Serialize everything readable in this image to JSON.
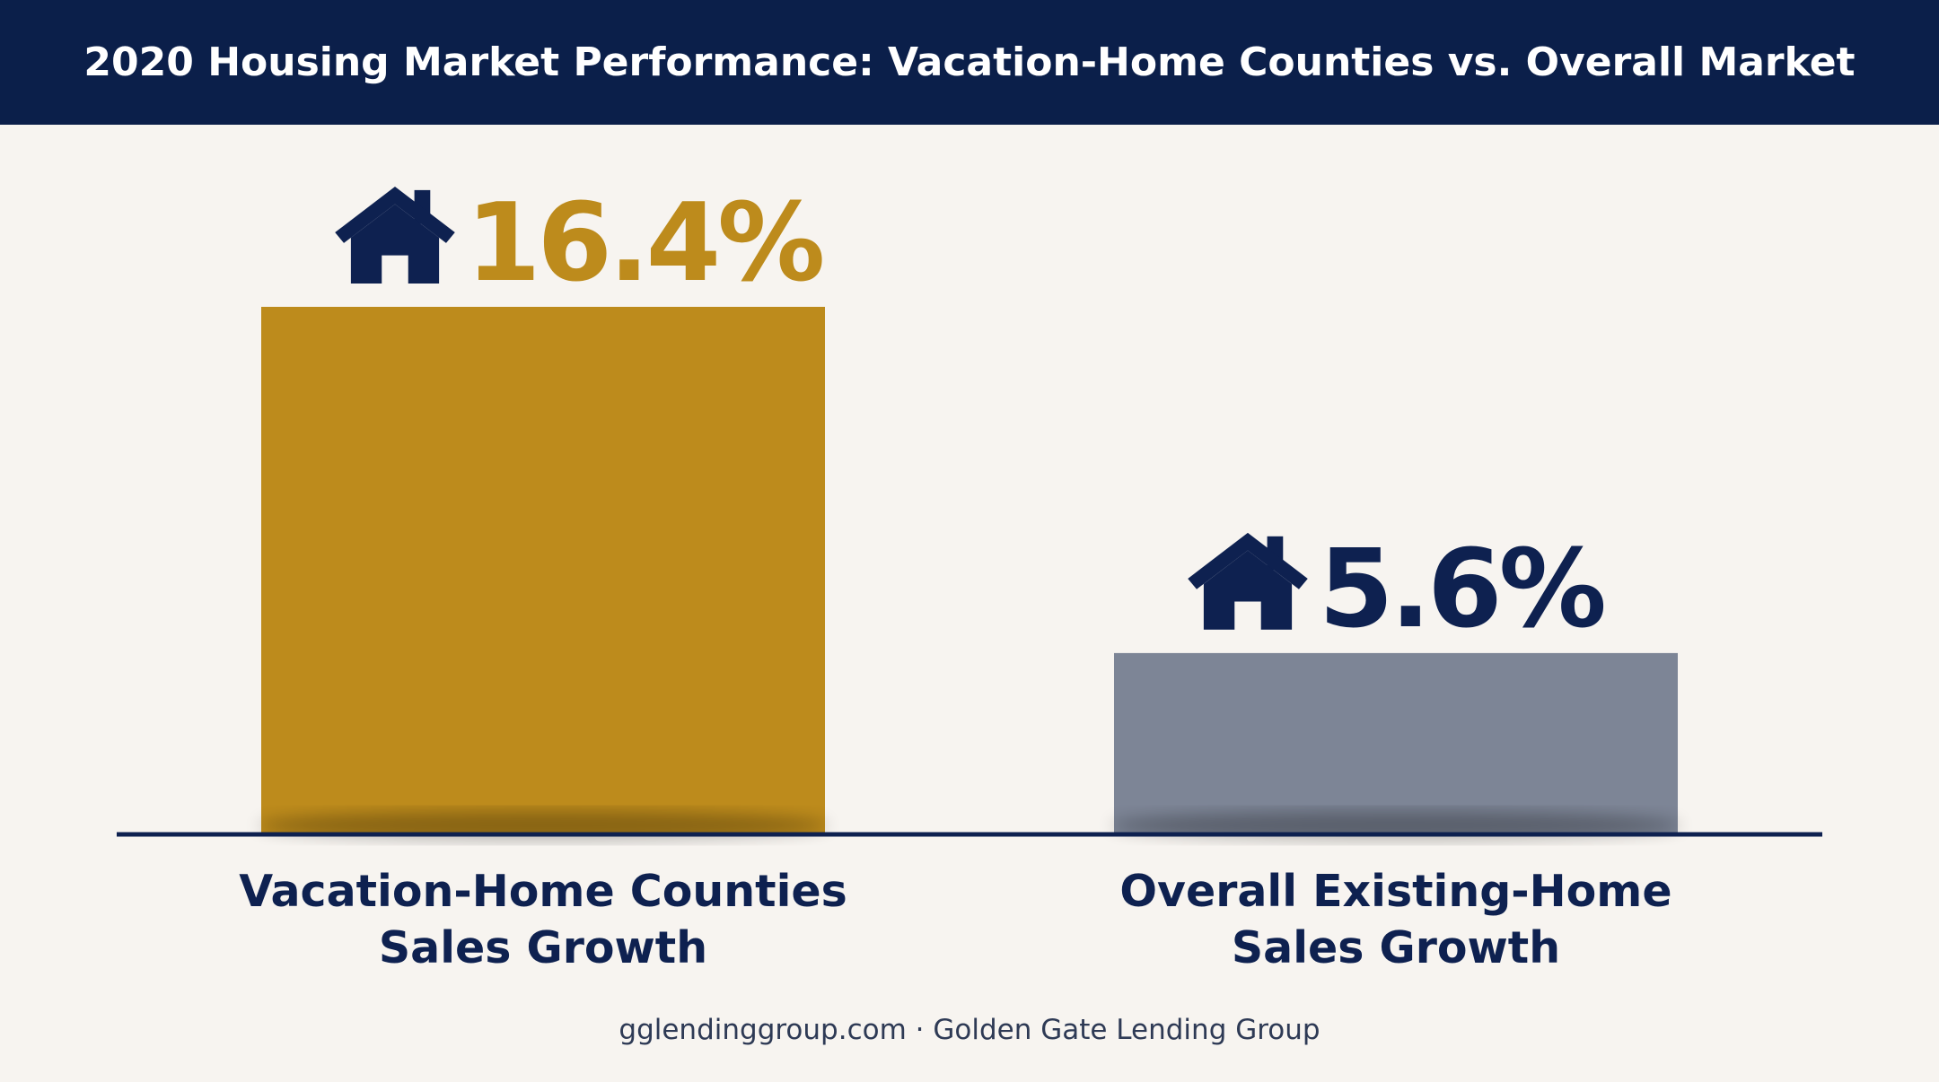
{
  "header": {
    "title": "2020 Housing Market Performance: Vacation-Home Counties vs. Overall Market"
  },
  "footer": {
    "text": "gglendinggroup.com · Golden Gate Lending Group"
  },
  "colors": {
    "header_bg": "#0b1f4a",
    "background": "#f7f4f0",
    "navy": "#0e2150",
    "gold": "#bd8b1c",
    "gray": "#7d8596"
  },
  "chart_data": {
    "type": "bar",
    "title": "2020 Housing Market Performance: Vacation-Home Counties vs. Overall Market",
    "categories": [
      [
        "Vacation-Home Counties",
        "Sales Growth"
      ],
      [
        "Overall Existing-Home",
        "Sales Growth"
      ]
    ],
    "values": [
      16.4,
      5.6
    ],
    "value_labels": [
      "16.4%",
      "5.6%"
    ],
    "unit": "%",
    "bar_colors": [
      "#bd8b1c",
      "#7d8596"
    ],
    "label_colors": [
      "#bd8b1c",
      "#0e2150"
    ],
    "label_icon": "house-icon",
    "ylim": [
      0,
      16.4
    ],
    "grid": false,
    "legend": "none"
  }
}
